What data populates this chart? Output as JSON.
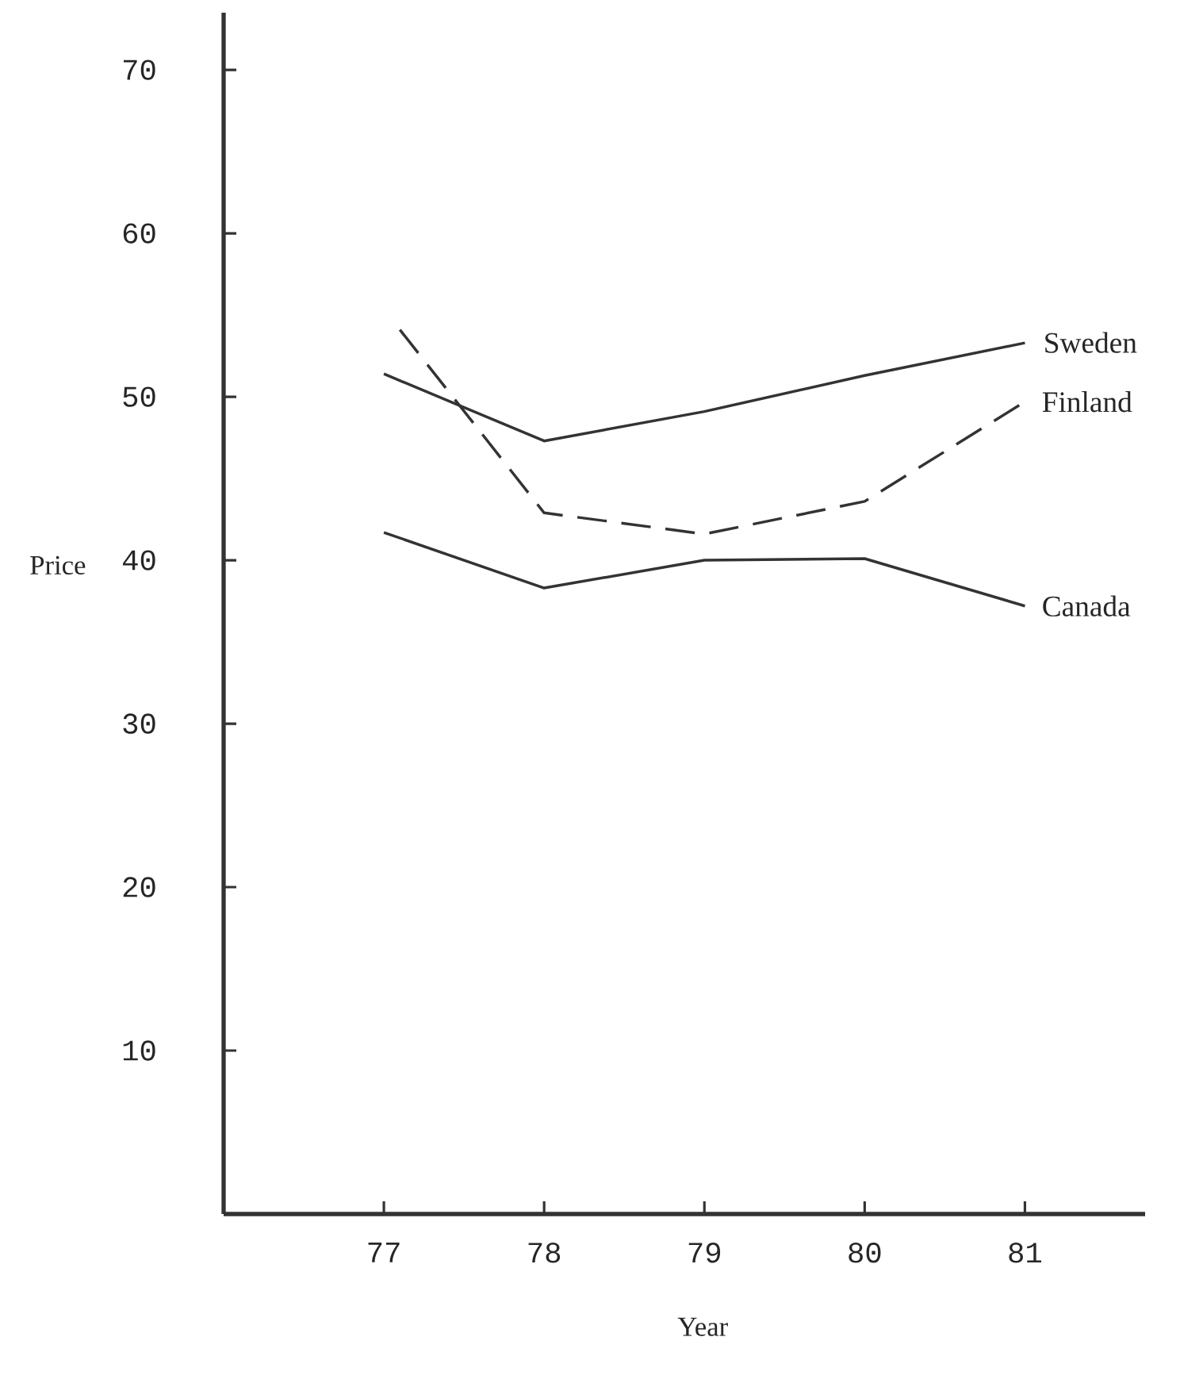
{
  "chart_data": {
    "type": "line",
    "xlabel": "Year",
    "ylabel": "Price",
    "xlim": [
      76,
      81.75
    ],
    "ylim": [
      0,
      73.5
    ],
    "xticks": [
      77,
      78,
      79,
      80,
      81
    ],
    "yticks": [
      10,
      20,
      30,
      40,
      50,
      60,
      70
    ],
    "x": [
      77,
      78,
      79,
      80,
      81
    ],
    "series": [
      {
        "name": "Sweden",
        "color": "#333333",
        "line_style": "solid",
        "values": [
          51.4,
          47.3,
          49.1,
          51.3,
          53.3
        ]
      },
      {
        "name": "Finland",
        "color": "#333333",
        "line_style": "dashed",
        "x": [
          77.1,
          78,
          79,
          80,
          81
        ],
        "values": [
          54.1,
          42.9,
          41.6,
          43.6,
          49.7
        ]
      },
      {
        "name": "Canada",
        "color": "#333333",
        "line_style": "solid",
        "values": [
          41.7,
          38.3,
          40.0,
          40.1,
          37.2
        ]
      }
    ]
  }
}
